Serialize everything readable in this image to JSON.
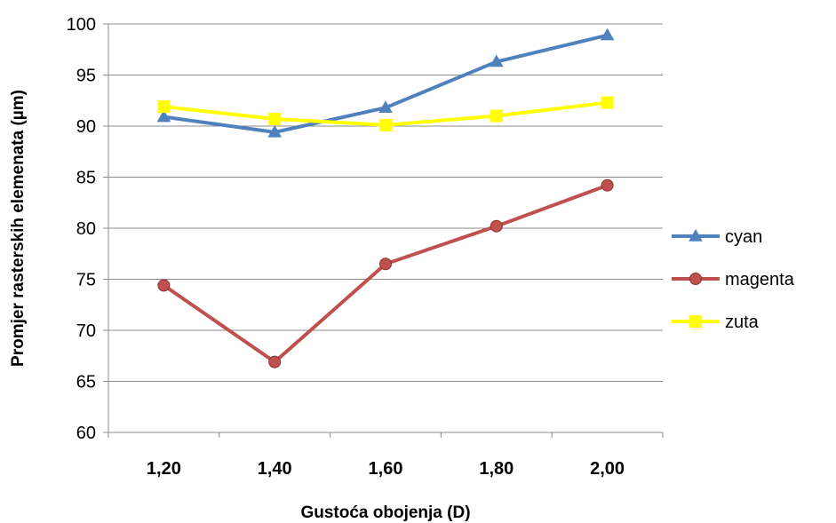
{
  "chart_data": {
    "type": "line",
    "title": "",
    "xlabel": "Gustoća obojenja (D)",
    "ylabel": "Promjer rasterskih elemenata (µm)",
    "categories": [
      "1,20",
      "1,40",
      "1,60",
      "1,80",
      "2,00"
    ],
    "y_ticks": [
      "60",
      "65",
      "70",
      "75",
      "80",
      "85",
      "90",
      "95",
      "100"
    ],
    "ylim": [
      60,
      100
    ],
    "grid": "horizontal",
    "legend_position": "right",
    "series": [
      {
        "name": "cyan",
        "values": [
          90.9,
          89.4,
          91.8,
          96.3,
          98.9
        ],
        "color": "#4F81BD",
        "marker": "triangle"
      },
      {
        "name": "magenta",
        "values": [
          74.4,
          66.9,
          76.5,
          80.2,
          84.2
        ],
        "color": "#C0504D",
        "marker": "circle"
      },
      {
        "name": "zuta",
        "values": [
          91.9,
          90.7,
          90.1,
          91.0,
          92.3
        ],
        "color": "#FFFF00",
        "marker": "square"
      }
    ]
  }
}
